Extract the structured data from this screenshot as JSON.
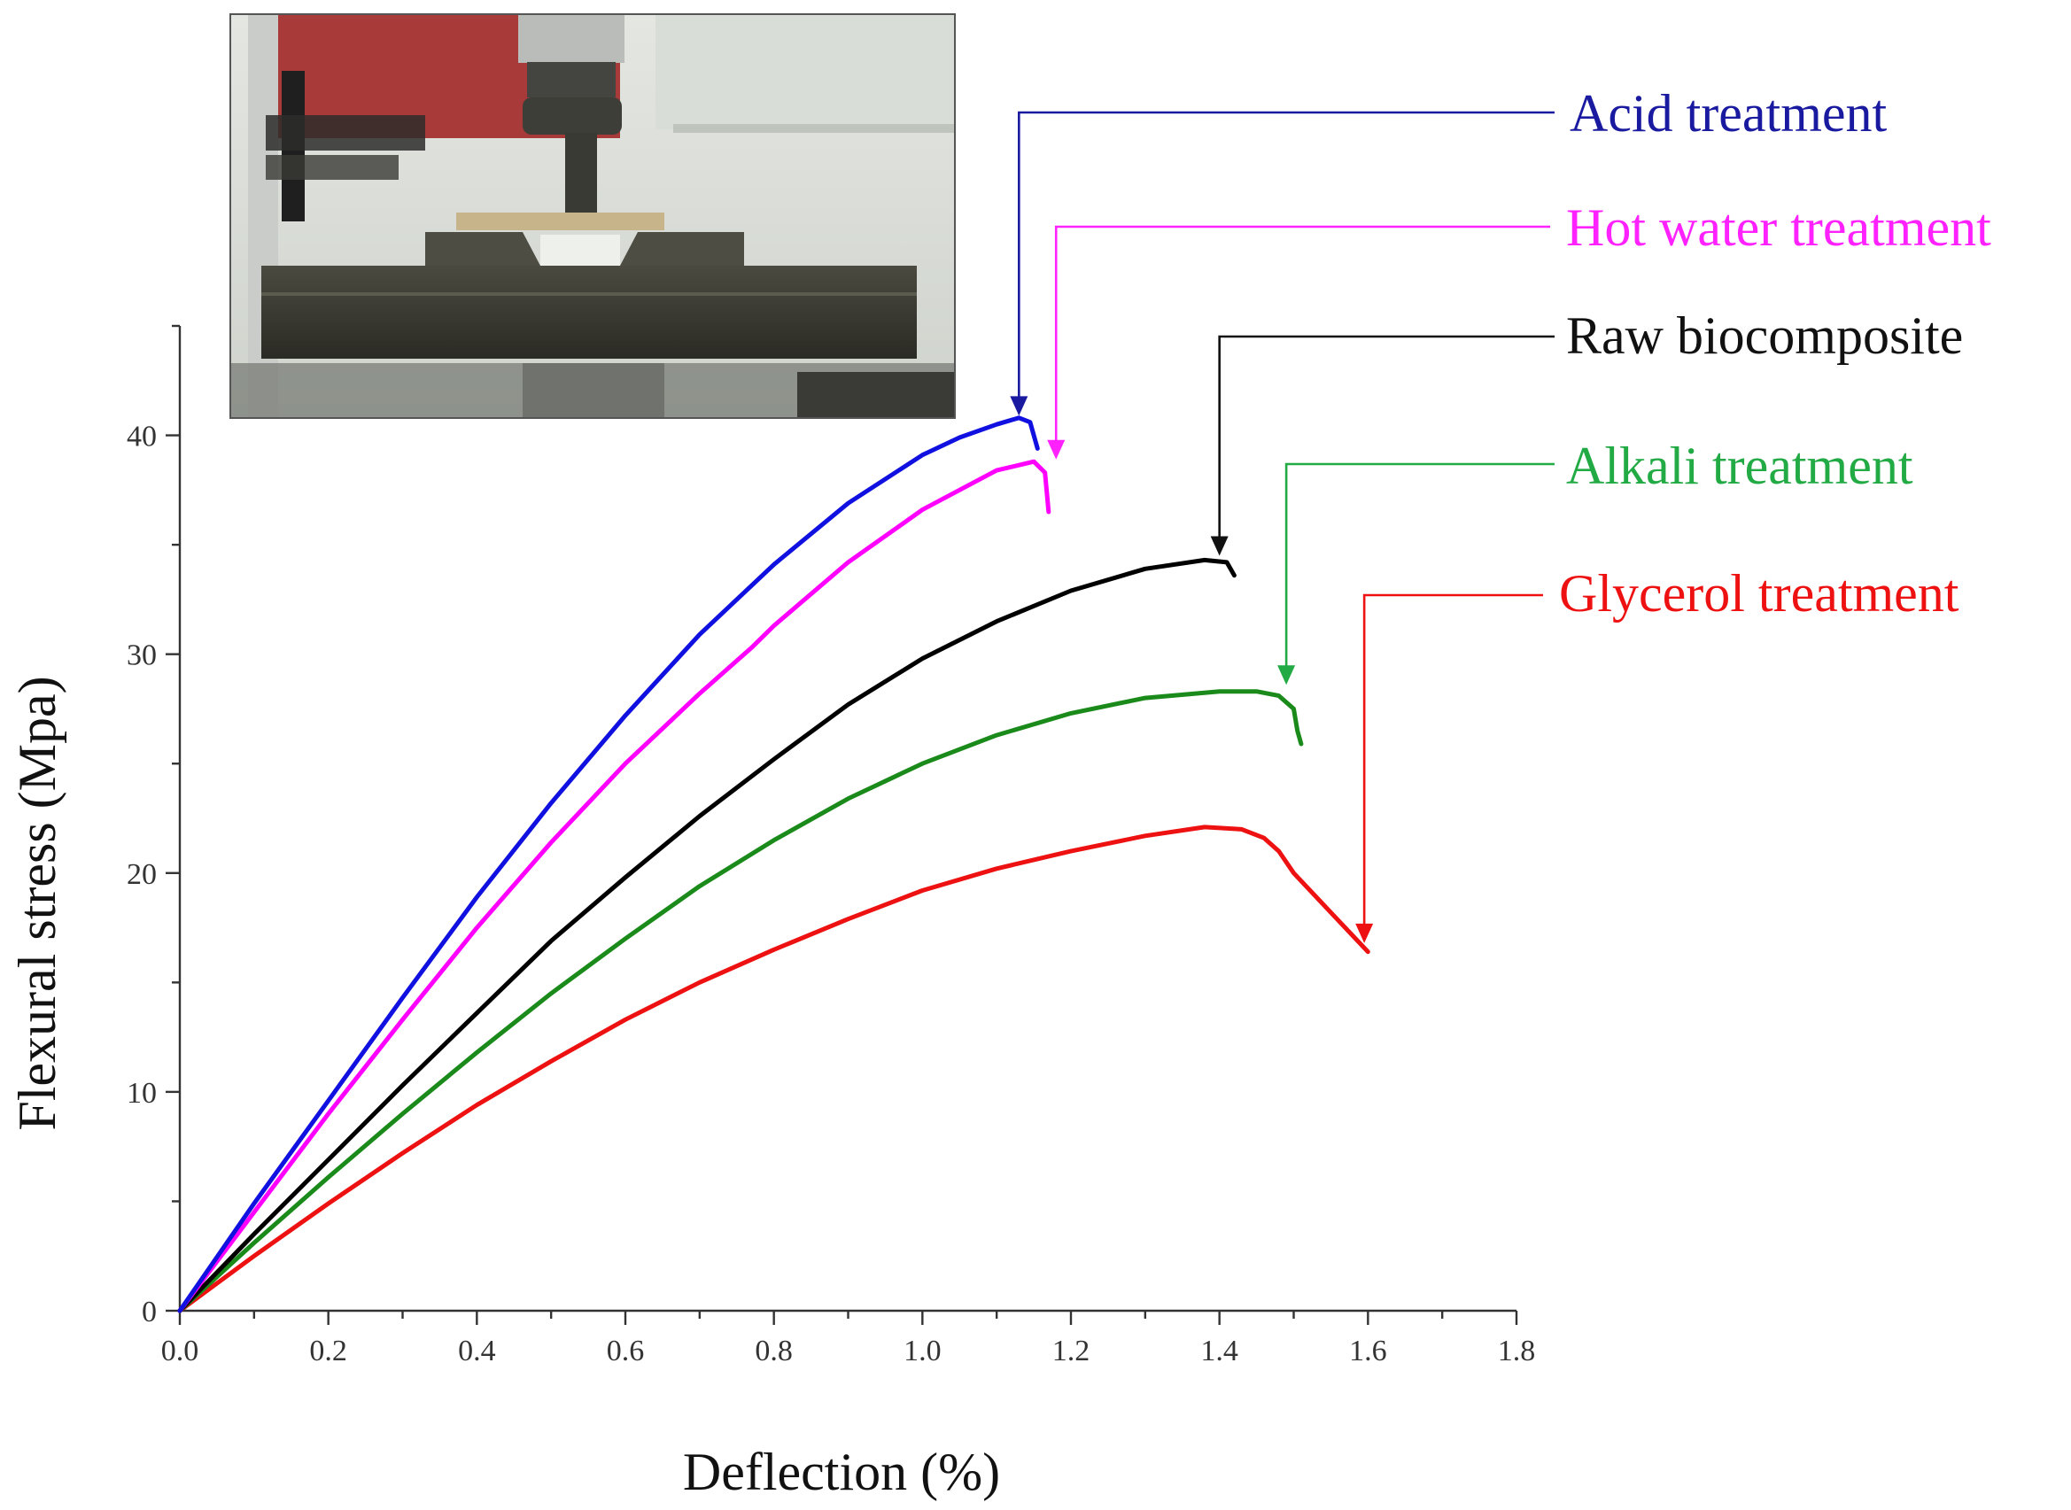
{
  "chart_data": {
    "type": "line",
    "xlabel": "Deflection (%)",
    "ylabel": "Flexural stress (Mpa)",
    "xlim": [
      0.0,
      1.8
    ],
    "ylim": [
      0,
      45
    ],
    "x_ticks": [
      "0.0",
      "0.2",
      "0.4",
      "0.6",
      "0.8",
      "1.0",
      "1.2",
      "1.4",
      "1.6",
      "1.8"
    ],
    "y_ticks": [
      "0",
      "10",
      "20",
      "30",
      "40"
    ],
    "grid": false,
    "legend_placement": "right (labels with leader arrows to each curve end)",
    "inset": "photograph of three-point bending test fixture (top-left)",
    "series": [
      {
        "name": "Acid treatment",
        "color": "#1010e0",
        "label_color": "#1a1aa0",
        "x": [
          0.0,
          0.1,
          0.2,
          0.3,
          0.4,
          0.5,
          0.6,
          0.7,
          0.8,
          0.9,
          1.0,
          1.05,
          1.1,
          1.13,
          1.145,
          1.15,
          1.155
        ],
        "y": [
          0,
          4.9,
          9.6,
          14.3,
          18.9,
          23.2,
          27.2,
          30.9,
          34.1,
          36.9,
          39.1,
          39.9,
          40.5,
          40.8,
          40.6,
          40.0,
          39.4
        ]
      },
      {
        "name": "Hot water treatment",
        "color": "#ff00ff",
        "label_color": "#ff22ff",
        "x": [
          0.0,
          0.1,
          0.2,
          0.3,
          0.4,
          0.5,
          0.6,
          0.7,
          0.77,
          0.8,
          0.9,
          1.0,
          1.1,
          1.15,
          1.165,
          1.17
        ],
        "y": [
          0,
          4.5,
          9.0,
          13.3,
          17.5,
          21.4,
          25.0,
          28.2,
          30.3,
          31.3,
          34.2,
          36.6,
          38.4,
          38.8,
          38.3,
          36.5
        ]
      },
      {
        "name": "Raw biocomposite",
        "color": "#000000",
        "label_color": "#111111",
        "x": [
          0.0,
          0.1,
          0.2,
          0.3,
          0.4,
          0.5,
          0.6,
          0.7,
          0.8,
          0.9,
          1.0,
          1.1,
          1.2,
          1.3,
          1.38,
          1.41,
          1.42
        ],
        "y": [
          0,
          3.5,
          6.9,
          10.3,
          13.6,
          16.9,
          19.8,
          22.6,
          25.2,
          27.7,
          29.8,
          31.5,
          32.9,
          33.9,
          34.3,
          34.2,
          33.6
        ]
      },
      {
        "name": "Alkali treatment",
        "color": "#1a8a1a",
        "label_color": "#22aa44",
        "x": [
          0.0,
          0.1,
          0.2,
          0.3,
          0.4,
          0.5,
          0.6,
          0.7,
          0.8,
          0.9,
          1.0,
          1.1,
          1.2,
          1.3,
          1.4,
          1.45,
          1.48,
          1.5,
          1.505,
          1.51
        ],
        "y": [
          0,
          3.1,
          6.1,
          9.0,
          11.8,
          14.5,
          17.0,
          19.4,
          21.5,
          23.4,
          25.0,
          26.3,
          27.3,
          28.0,
          28.3,
          28.3,
          28.1,
          27.5,
          26.5,
          25.9
        ]
      },
      {
        "name": "Glycerol treatment",
        "color": "#ee1111",
        "label_color": "#ee1111",
        "x": [
          0.0,
          0.1,
          0.2,
          0.3,
          0.4,
          0.5,
          0.6,
          0.7,
          0.8,
          0.9,
          1.0,
          1.1,
          1.2,
          1.3,
          1.38,
          1.43,
          1.46,
          1.48,
          1.5,
          1.55,
          1.6
        ],
        "y": [
          0,
          2.5,
          4.9,
          7.2,
          9.4,
          11.4,
          13.3,
          15.0,
          16.5,
          17.9,
          19.2,
          20.2,
          21.0,
          21.7,
          22.1,
          22.0,
          21.6,
          21.0,
          20.0,
          18.2,
          16.4
        ]
      }
    ]
  }
}
